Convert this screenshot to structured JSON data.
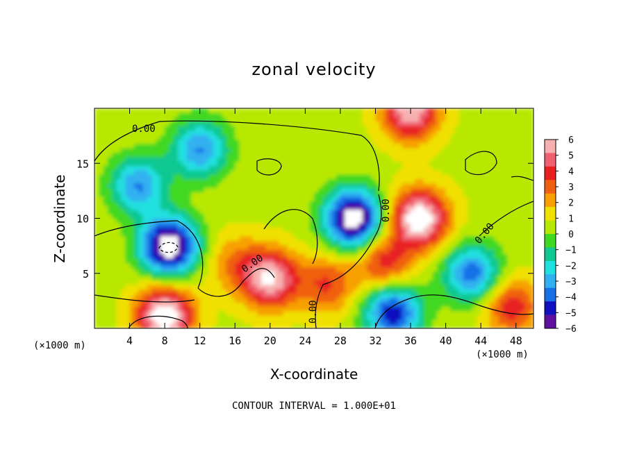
{
  "chart_data": {
    "type": "heatmap",
    "title": "zonal velocity",
    "xlabel": "X-coordinate",
    "ylabel": "Z-coordinate",
    "x_units": "(×1000 m)",
    "x_ticks": [
      4,
      8,
      12,
      16,
      20,
      24,
      28,
      32,
      36,
      40,
      44,
      48
    ],
    "y_ticks": [
      5,
      10,
      15
    ],
    "xlim": [
      0,
      50
    ],
    "ylim": [
      0,
      20
    ],
    "colorbar": {
      "ticks": [
        6,
        5,
        4,
        3,
        2,
        1,
        0,
        -1,
        -2,
        -3,
        -4,
        -5,
        -6
      ],
      "colors": [
        "#f7b0b0",
        "#f06070",
        "#e82020",
        "#f06010",
        "#f7a000",
        "#f0e000",
        "#b8e800",
        "#40d820",
        "#10c890",
        "#20e0e0",
        "#30b0f0",
        "#1870e8",
        "#1010c0",
        "#6010a0"
      ]
    },
    "contour_label": "0.00",
    "contour_interval_text": "CONTOUR INTERVAL = 1.000E+01",
    "features": [
      {
        "x": 36,
        "z": 19.8,
        "value": 6
      },
      {
        "x": 8.5,
        "z": 7.5,
        "value": -7
      },
      {
        "x": 29.5,
        "z": 10,
        "value": -7
      },
      {
        "x": 37,
        "z": 10,
        "value": 7
      },
      {
        "x": 20,
        "z": 4.5,
        "value": 6
      },
      {
        "x": 8,
        "z": 1.2,
        "value": 7
      },
      {
        "x": 12,
        "z": 16.3,
        "value": -3.5
      },
      {
        "x": 5,
        "z": 13,
        "value": -3.5
      },
      {
        "x": 26.5,
        "z": 4,
        "value": 3.5
      },
      {
        "x": 33,
        "z": 6,
        "value": 4
      },
      {
        "x": 34,
        "z": 1.5,
        "value": -5
      },
      {
        "x": 43,
        "z": 5,
        "value": -4
      },
      {
        "x": 47.5,
        "z": 2,
        "value": 4
      },
      {
        "x": 16,
        "z": 6,
        "value": 2.5
      }
    ]
  }
}
